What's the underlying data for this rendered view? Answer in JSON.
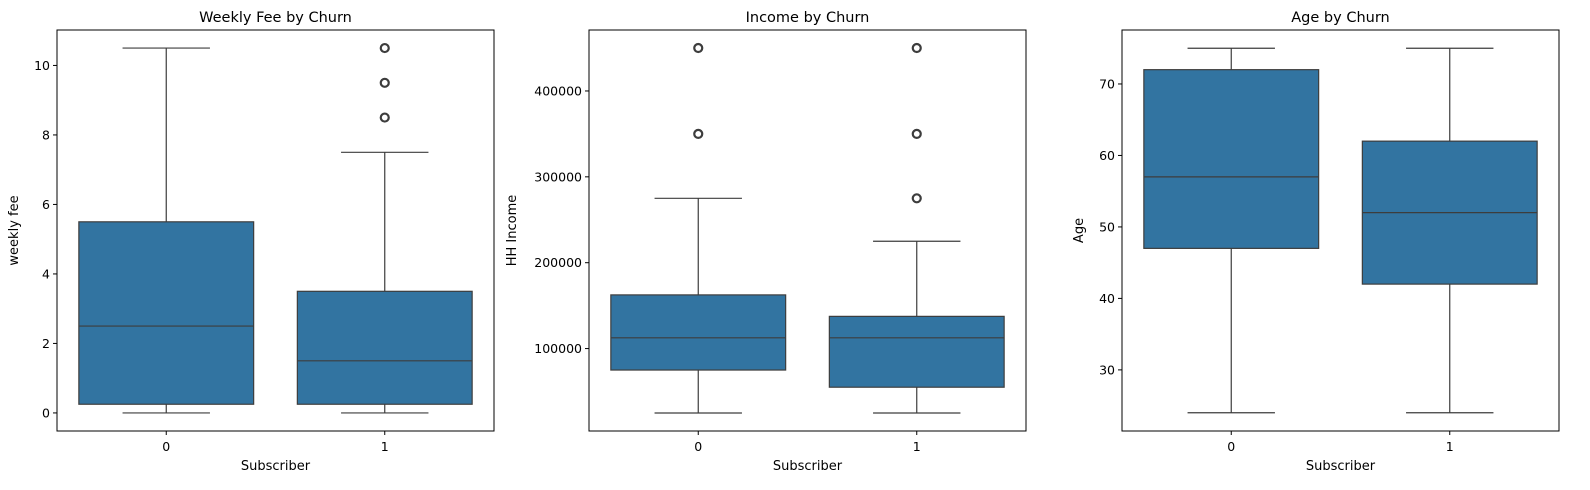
{
  "colors": {
    "box_fill": "#3274a1",
    "line": "#3d3d3d",
    "axes": "#000000",
    "background": "#ffffff"
  },
  "chart_data": [
    {
      "type": "box",
      "title": "Weekly Fee by Churn",
      "xlabel": "Subscriber",
      "ylabel": "weekly fee",
      "categories": [
        "0",
        "1"
      ],
      "ylim": [
        -0.52,
        11.02
      ],
      "yticks": [
        0,
        2,
        4,
        6,
        8,
        10
      ],
      "ytick_labels": [
        "0",
        "2",
        "4",
        "6",
        "8",
        "10"
      ],
      "grid": false,
      "boxes": [
        {
          "category": "0",
          "whisker_low": 0,
          "q1": 0.25,
          "median": 2.5,
          "q3": 5.5,
          "whisker_high": 10.5,
          "outliers": []
        },
        {
          "category": "1",
          "whisker_low": 0,
          "q1": 0.25,
          "median": 1.5,
          "q3": 3.5,
          "whisker_high": 7.5,
          "outliers": [
            8.5,
            9.5,
            10.5
          ]
        }
      ]
    },
    {
      "type": "box",
      "title": "Income by Churn",
      "xlabel": "Subscriber",
      "ylabel": "HH Income",
      "categories": [
        "0",
        "1"
      ],
      "ylim": [
        4000,
        471000
      ],
      "yticks": [
        100000,
        200000,
        300000,
        400000
      ],
      "ytick_labels": [
        "100000",
        "200000",
        "300000",
        "400000"
      ],
      "grid": false,
      "boxes": [
        {
          "category": "0",
          "whisker_low": 25000,
          "q1": 75000,
          "median": 112500,
          "q3": 162500,
          "whisker_high": 275000,
          "outliers": [
            350000,
            450000
          ]
        },
        {
          "category": "1",
          "whisker_low": 25000,
          "q1": 55000,
          "median": 112500,
          "q3": 137500,
          "whisker_high": 225000,
          "outliers": [
            275000,
            350000,
            450000
          ]
        }
      ]
    },
    {
      "type": "box",
      "title": "Age by Churn",
      "xlabel": "Subscriber",
      "ylabel": "Age",
      "categories": [
        "0",
        "1"
      ],
      "ylim": [
        21.45,
        77.55
      ],
      "yticks": [
        30,
        40,
        50,
        60,
        70
      ],
      "ytick_labels": [
        "30",
        "40",
        "50",
        "60",
        "70"
      ],
      "grid": false,
      "boxes": [
        {
          "category": "0",
          "whisker_low": 24,
          "q1": 47,
          "median": 57,
          "q3": 72,
          "whisker_high": 75,
          "outliers": []
        },
        {
          "category": "1",
          "whisker_low": 24,
          "q1": 42,
          "median": 52,
          "q3": 62,
          "whisker_high": 75,
          "outliers": []
        }
      ]
    }
  ]
}
